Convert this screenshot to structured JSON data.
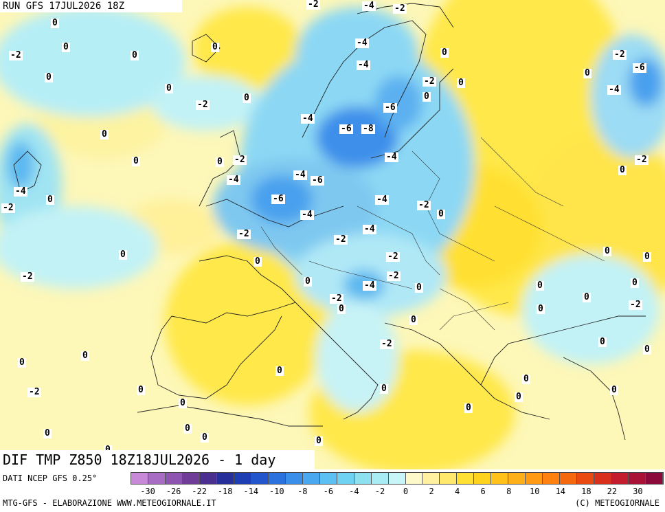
{
  "header": {
    "run": "RUN GFS 17JUL2026 18Z"
  },
  "title": {
    "text": "DIF TMP Z850 18Z18JUL2026 - 1 day"
  },
  "footer": {
    "source": "DATI NCEP GFS 0.25°",
    "left": "MTG-GFS - ELABORAZIONE WWW.METEOGIORNALE.IT",
    "right": "(C) METEOGIORNALE"
  },
  "legend": {
    "colors": [
      "#c88ad8",
      "#a86cc4",
      "#8e55b0",
      "#6f3c98",
      "#4a2e90",
      "#27309a",
      "#1e3fb4",
      "#2356cc",
      "#2c72de",
      "#3a8fea",
      "#4aa8f0",
      "#5cc0f4",
      "#6fd2f2",
      "#8ce0f0",
      "#aaecf4",
      "#c8f6f8",
      "#fdf9c8",
      "#fff1a0",
      "#ffe86c",
      "#ffe033",
      "#ffd21e",
      "#ffc11a",
      "#ffb018",
      "#ff9a14",
      "#ff8210",
      "#f5680e",
      "#e84a12",
      "#d8301c",
      "#c41c2c",
      "#a81236",
      "#8c0a3a"
    ],
    "ticks": [
      "-30",
      "-26",
      "-22",
      "-18",
      "-14",
      "-10",
      "-8",
      "-6",
      "-4",
      "-2",
      "0",
      "2",
      "4",
      "6",
      "8",
      "10",
      "14",
      "18",
      "22",
      "30"
    ]
  },
  "labels": [
    {
      "t": "0"
    },
    {
      "t": "0"
    },
    {
      "t": "-2"
    },
    {
      "t": "0"
    },
    {
      "t": "0"
    },
    {
      "t": "0"
    },
    {
      "t": "-2"
    },
    {
      "t": "0"
    },
    {
      "t": "0"
    },
    {
      "t": "0"
    },
    {
      "t": "-4"
    },
    {
      "t": "-2"
    },
    {
      "t": "0"
    },
    {
      "t": "0"
    },
    {
      "t": "-2"
    },
    {
      "t": "0"
    },
    {
      "t": "0"
    },
    {
      "t": "-2"
    },
    {
      "t": "-4"
    },
    {
      "t": "-2"
    },
    {
      "t": "-4"
    },
    {
      "t": "-4"
    },
    {
      "t": "-4"
    },
    {
      "t": "0"
    },
    {
      "t": "-2"
    },
    {
      "t": "0"
    },
    {
      "t": "-6"
    },
    {
      "t": "-4"
    },
    {
      "t": "-6"
    },
    {
      "t": "-8"
    },
    {
      "t": "-4"
    },
    {
      "t": "-2"
    },
    {
      "t": "-4"
    },
    {
      "t": "-4"
    },
    {
      "t": "-6"
    },
    {
      "t": "-6"
    },
    {
      "t": "-4"
    },
    {
      "t": "-4"
    },
    {
      "t": "-2"
    },
    {
      "t": "0"
    },
    {
      "t": "-2"
    },
    {
      "t": "-2"
    },
    {
      "t": "0"
    },
    {
      "t": "0"
    },
    {
      "t": "-4"
    },
    {
      "t": "-2"
    },
    {
      "t": "-2"
    },
    {
      "t": "0"
    },
    {
      "t": "-2"
    },
    {
      "t": "-2"
    },
    {
      "t": "0"
    },
    {
      "t": "0"
    },
    {
      "t": "0"
    },
    {
      "t": "-2"
    },
    {
      "t": "-2"
    },
    {
      "t": "0"
    },
    {
      "t": "0"
    },
    {
      "t": "0"
    },
    {
      "t": "0"
    },
    {
      "t": "0"
    },
    {
      "t": "0"
    },
    {
      "t": "0"
    },
    {
      "t": "0"
    },
    {
      "t": "0"
    },
    {
      "t": "0"
    },
    {
      "t": "-6"
    },
    {
      "t": "-4"
    },
    {
      "t": "0"
    },
    {
      "t": "-2"
    },
    {
      "t": "0"
    },
    {
      "t": "0"
    },
    {
      "t": "0"
    },
    {
      "t": "0"
    },
    {
      "t": "-2"
    },
    {
      "t": "0"
    },
    {
      "t": "0"
    },
    {
      "t": "0"
    },
    {
      "t": "0"
    },
    {
      "t": "0"
    },
    {
      "t": "0"
    },
    {
      "t": "0"
    },
    {
      "t": "0"
    },
    {
      "t": "0"
    },
    {
      "t": "0"
    }
  ]
}
